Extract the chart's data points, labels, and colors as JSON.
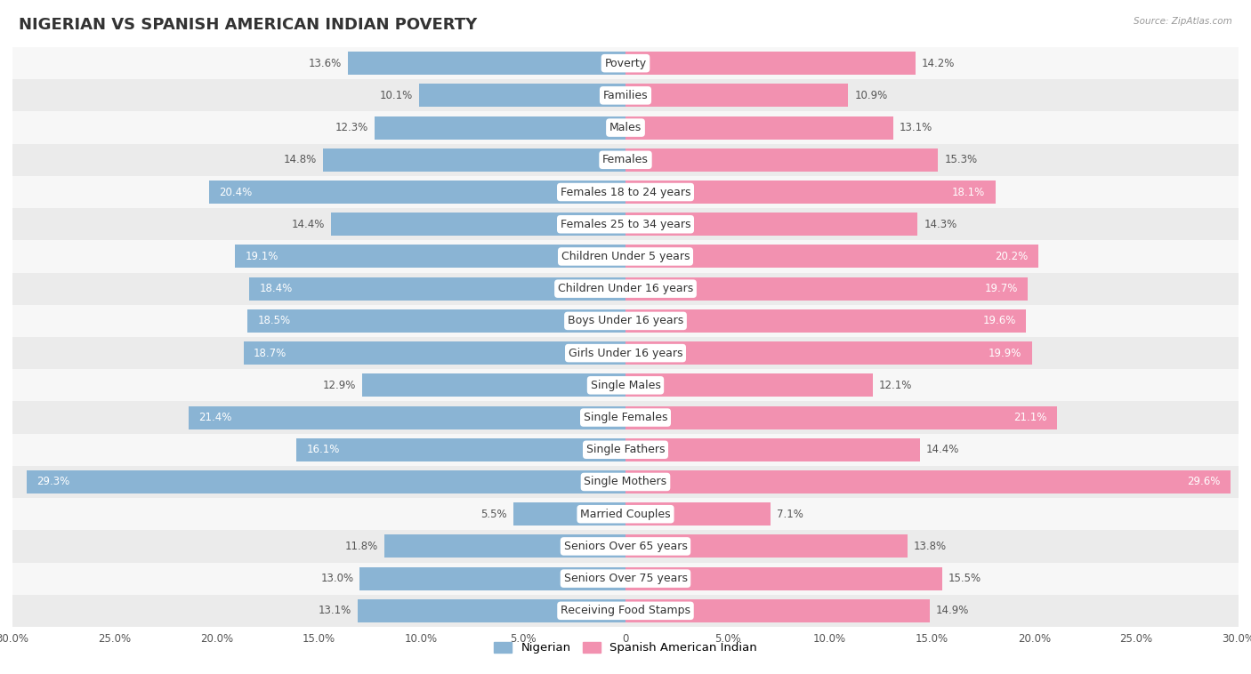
{
  "title": "NIGERIAN VS SPANISH AMERICAN INDIAN POVERTY",
  "source": "Source: ZipAtlas.com",
  "categories": [
    "Poverty",
    "Families",
    "Males",
    "Females",
    "Females 18 to 24 years",
    "Females 25 to 34 years",
    "Children Under 5 years",
    "Children Under 16 years",
    "Boys Under 16 years",
    "Girls Under 16 years",
    "Single Males",
    "Single Females",
    "Single Fathers",
    "Single Mothers",
    "Married Couples",
    "Seniors Over 65 years",
    "Seniors Over 75 years",
    "Receiving Food Stamps"
  ],
  "nigerian": [
    13.6,
    10.1,
    12.3,
    14.8,
    20.4,
    14.4,
    19.1,
    18.4,
    18.5,
    18.7,
    12.9,
    21.4,
    16.1,
    29.3,
    5.5,
    11.8,
    13.0,
    13.1
  ],
  "spanish": [
    14.2,
    10.9,
    13.1,
    15.3,
    18.1,
    14.3,
    20.2,
    19.7,
    19.6,
    19.9,
    12.1,
    21.1,
    14.4,
    29.6,
    7.1,
    13.8,
    15.5,
    14.9
  ],
  "nigerian_color": "#8ab4d4",
  "spanish_color": "#f291b0",
  "nigerian_label": "Nigerian",
  "spanish_label": "Spanish American Indian",
  "xlim": 30,
  "background_color": "#ffffff",
  "row_alt_color": "#ebebeb",
  "row_main_color": "#f7f7f7",
  "title_fontsize": 13,
  "cat_fontsize": 9,
  "value_fontsize": 8.5,
  "axis_label_fontsize": 8.5,
  "white_text_threshold": 16.0
}
